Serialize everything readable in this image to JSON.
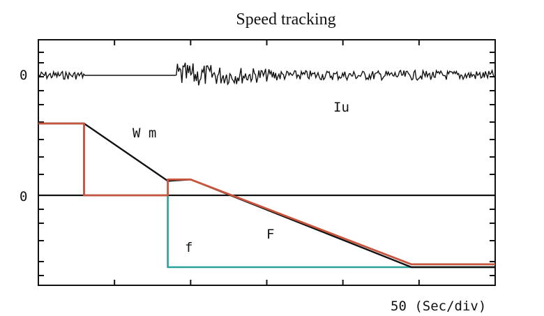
{
  "chart_data": {
    "type": "line",
    "title": "Speed tracking",
    "x_axis_note": "50 (Sec/div)",
    "x_divisions": 6,
    "series": [
      {
        "name": "Wm",
        "label": "W m",
        "color": "#111111",
        "x": [
          0,
          0.6,
          1.7,
          2.0,
          4.9,
          6.0
        ],
        "y": [
          1.0,
          1.0,
          0.2,
          0.22,
          -1.0,
          -1.0
        ]
      },
      {
        "name": "F",
        "label": "F",
        "color": "#c8553d",
        "x": [
          0,
          0.6,
          0.6,
          1.7,
          1.7,
          2.0,
          4.9,
          6.0
        ],
        "y": [
          1.0,
          1.0,
          0.0,
          0.0,
          0.22,
          0.22,
          -0.96,
          -0.96
        ]
      },
      {
        "name": "f",
        "label": "f",
        "color": "#2aa198",
        "x": [
          0,
          0.6,
          0.6,
          1.7,
          1.7,
          6.0
        ],
        "y": [
          1.0,
          1.0,
          0.0,
          0.0,
          -1.0,
          -1.0
        ]
      }
    ],
    "noise_trace": {
      "name": "Iu",
      "label": "Iu",
      "zero_label": "0",
      "color": "#111111",
      "quiet_start": 0.6,
      "quiet_end": 1.8
    },
    "speed_zero_label": "0",
    "grid": false
  }
}
